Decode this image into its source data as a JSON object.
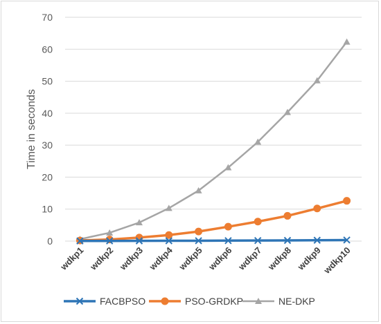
{
  "chart_data": {
    "type": "line",
    "title": "",
    "xlabel": "",
    "ylabel": "Time in seconds",
    "ylim": [
      0,
      70
    ],
    "yticks": [
      0,
      10,
      20,
      30,
      40,
      50,
      60,
      70
    ],
    "grid": "horizontal",
    "legend_position": "bottom",
    "categories": [
      "wdkp1",
      "wdkp2",
      "wdkp3",
      "wdkp4",
      "wdkp5",
      "wdkp6",
      "wdkp7",
      "wdkp8",
      "wdkp9",
      "wdkp10"
    ],
    "series": [
      {
        "name": "FACBPSO",
        "color": "#2e75b6",
        "marker": "x",
        "values": [
          0.05,
          0.06,
          0.08,
          0.1,
          0.12,
          0.15,
          0.18,
          0.22,
          0.27,
          0.33
        ]
      },
      {
        "name": "PSO-GRDKP",
        "color": "#ed7d31",
        "marker": "circle",
        "values": [
          0.2,
          0.5,
          1.1,
          1.9,
          3.0,
          4.5,
          6.1,
          7.9,
          10.2,
          12.6
        ]
      },
      {
        "name": "NE-DKP",
        "color": "#a5a5a5",
        "marker": "triangle",
        "values": [
          0.6,
          2.6,
          5.8,
          10.3,
          15.8,
          23.0,
          31.0,
          40.3,
          50.2,
          62.3
        ]
      }
    ]
  }
}
